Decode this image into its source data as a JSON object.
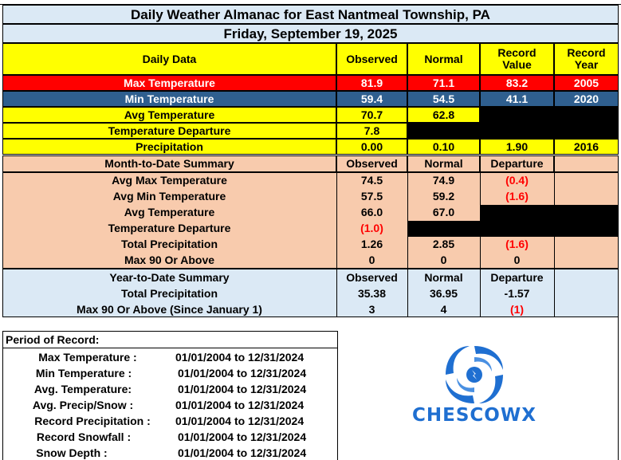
{
  "header": {
    "title": "Daily Weather Almanac for East Nantmeal Township, PA",
    "date": "Friday, September 19, 2025"
  },
  "daily": {
    "headers": {
      "label": "Daily Data",
      "observed": "Observed",
      "normal": "Normal",
      "record_value": "Record Value",
      "record_year": "Record Year"
    },
    "rows": [
      {
        "label": "Max Temperature",
        "observed": "81.9",
        "normal": "71.1",
        "record_value": "83.2",
        "record_year": "2005"
      },
      {
        "label": "Min Temperature",
        "observed": "59.4",
        "normal": "54.5",
        "record_value": "41.1",
        "record_year": "2020"
      },
      {
        "label": "Avg Temperature",
        "observed": "70.7",
        "normal": "62.8"
      },
      {
        "label": "Temperature Departure",
        "observed": "7.8"
      },
      {
        "label": "Precipitation",
        "observed": "0.00",
        "normal": "0.10",
        "record_value": "1.90",
        "record_year": "2016"
      }
    ]
  },
  "month": {
    "headers": {
      "label": "Month-to-Date Summary",
      "observed": "Observed",
      "normal": "Normal",
      "departure": "Departure"
    },
    "rows": [
      {
        "label": "Avg Max Temperature",
        "observed": "74.5",
        "normal": "74.9",
        "departure": "(0.4)"
      },
      {
        "label": "Avg Min Temperature",
        "observed": "57.5",
        "normal": "59.2",
        "departure": "(1.6)"
      },
      {
        "label": "Avg Temperature",
        "observed": "66.0",
        "normal": "67.0"
      },
      {
        "label": "Temperature Departure",
        "observed": "(1.0)"
      },
      {
        "label": "Total Precipitation",
        "observed": "1.26",
        "normal": "2.85",
        "departure": "(1.6)"
      },
      {
        "label": "Max 90 Or Above",
        "observed": "0",
        "normal": "0",
        "departure": "0"
      }
    ]
  },
  "year": {
    "headers": {
      "label": "Year-to-Date Summary",
      "observed": "Observed",
      "normal": "Normal",
      "departure": "Departure"
    },
    "rows": [
      {
        "label": "Total Precipitation",
        "observed": "35.38",
        "normal": "36.95",
        "departure": "-1.57"
      },
      {
        "label": "Max 90 Or Above (Since January 1)",
        "observed": "3",
        "normal": "4",
        "departure": "(1)"
      }
    ]
  },
  "period_of_record": {
    "title": "Period of Record:",
    "rows": [
      {
        "label": "Max Temperature :",
        "range": "01/01/2004 to 12/31/2024"
      },
      {
        "label": "Min Temperature :",
        "range": "01/01/2004 to 12/31/2024"
      },
      {
        "label": "Avg. Temperature:",
        "range": "01/01/2004 to 12/31/2024"
      },
      {
        "label": "Avg. Precip/Snow :",
        "range": "01/01/2004 to 12/31/2024"
      },
      {
        "label": "Record Precipitation :",
        "range": "01/01/2004 to 12/31/2024"
      },
      {
        "label": "Record Snowfall :",
        "range": "01/01/2004 to 12/31/2024"
      },
      {
        "label": "Snow Depth :",
        "range": "01/01/2004 to 12/31/2024"
      }
    ]
  },
  "logo": {
    "text": "CHESCOWX"
  },
  "colors": {
    "max_row": "#ff0000",
    "min_row": "#2f5f8f",
    "daily_bg": "#ffff00",
    "month_bg": "#f8cbad",
    "year_bg": "#dbe9f5",
    "negative_text": "#ff0000",
    "logo_blue": "#1f6fd1"
  }
}
